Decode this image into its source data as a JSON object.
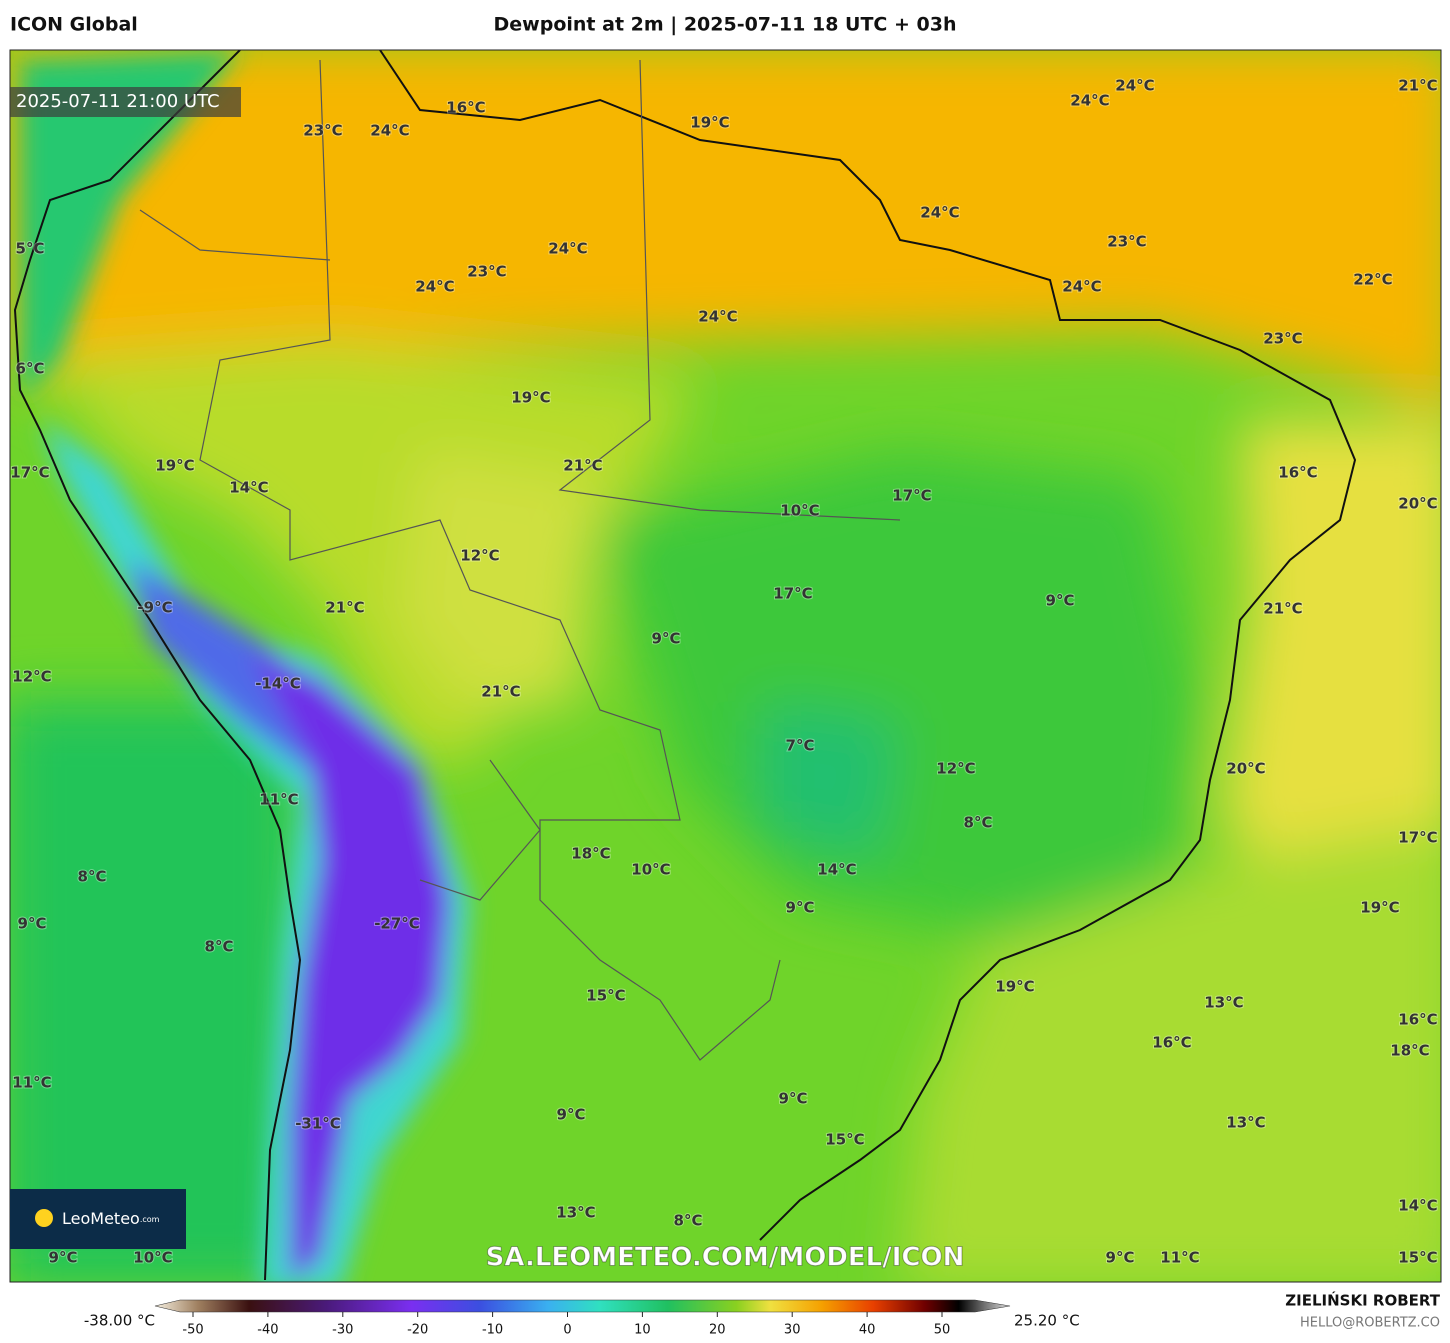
{
  "header": {
    "model": "ICON Global",
    "title": "Dewpoint at 2m | 2025-07-11 18 UTC + 03h",
    "valid_time": "2025-07-11 21:00 UTC"
  },
  "map": {
    "labels": [
      "24°C",
      "24°C",
      "21°C",
      "16°C",
      "19°C",
      "23°C",
      "24°C",
      "24°C",
      "23°C",
      "5°C",
      "24°C",
      "23°C",
      "22°C",
      "24°C",
      "24°C",
      "24°C",
      "23°C",
      "6°C",
      "19°C",
      "19°C",
      "21°C",
      "17°C",
      "16°C",
      "14°C",
      "17°C",
      "20°C",
      "10°C",
      "12°C",
      "17°C",
      "9°C",
      "-9°C",
      "21°C",
      "21°C",
      "9°C",
      "12°C",
      "-14°C",
      "21°C",
      "7°C",
      "12°C",
      "20°C",
      "11°C",
      "8°C",
      "17°C",
      "18°C",
      "10°C",
      "14°C",
      "8°C",
      "9°C",
      "19°C",
      "9°C",
      "-27°C",
      "8°C",
      "19°C",
      "15°C",
      "13°C",
      "16°C",
      "16°C",
      "18°C",
      "11°C",
      "9°C",
      "9°C",
      "13°C",
      "-31°C",
      "15°C",
      "14°C",
      "13°C",
      "8°C",
      "9°C",
      "10°C",
      "9°C",
      "11°C",
      "15°C"
    ],
    "watermark": "SA.LEOMETEO.COM/MODEL/ICON",
    "logo": "LeoMeteo",
    "logo_suffix": ".com"
  },
  "colorbar": {
    "min_label": "-38.00 °C",
    "max_label": "25.20 °C",
    "ticks": [
      -50,
      -40,
      -30,
      -20,
      -10,
      0,
      10,
      20,
      30,
      40,
      50
    ]
  },
  "footer": {
    "author": "ZIELIŃSKI ROBERT",
    "contact": "HELLO@ROBERTZ.CO"
  }
}
